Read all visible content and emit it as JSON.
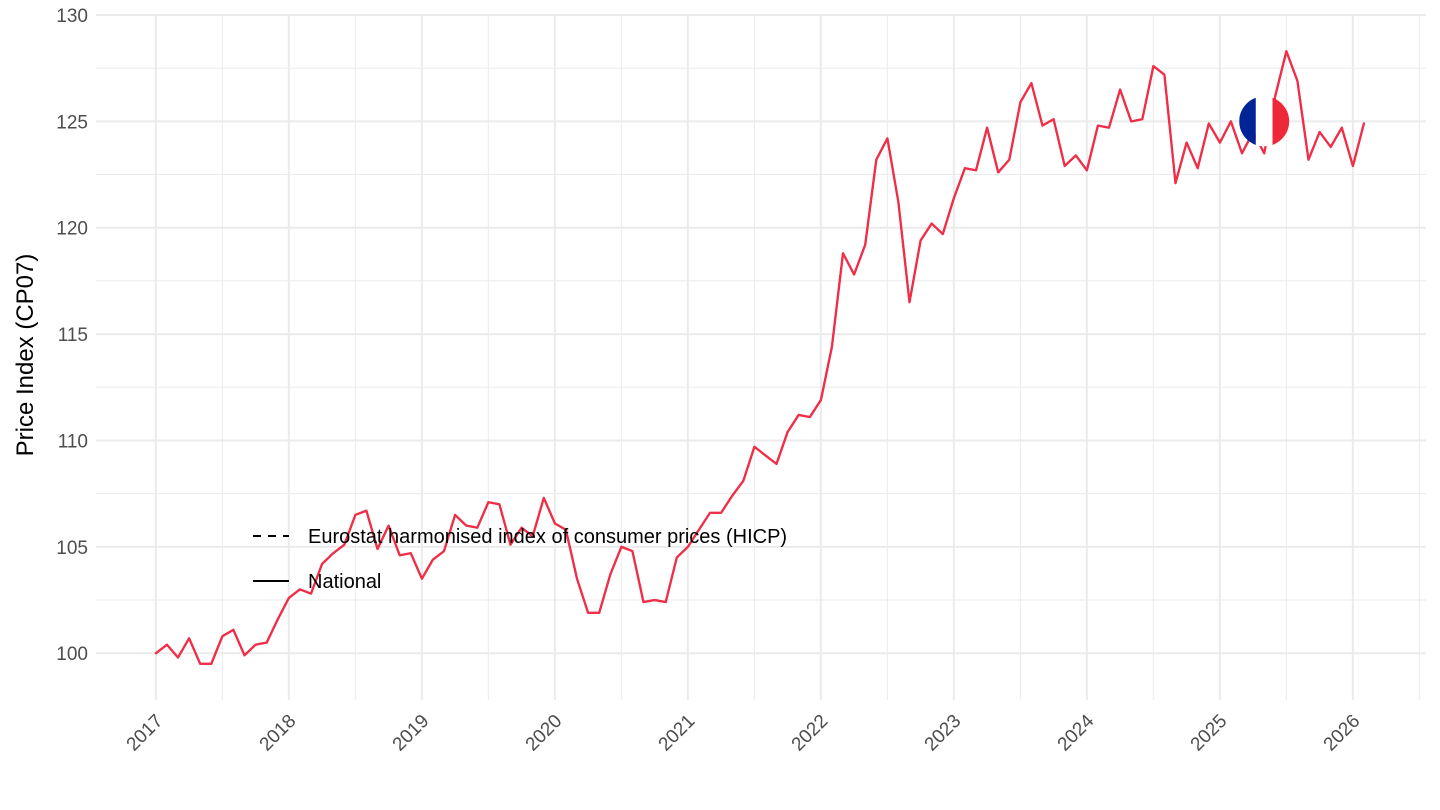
{
  "chart_data": {
    "type": "line",
    "ylabel": "Price Index (CP07)",
    "xlabel": "",
    "ylim": [
      97.8,
      130
    ],
    "xlim": [
      2016.55,
      2026.55
    ],
    "y_ticks": [
      100,
      105,
      110,
      115,
      120,
      125,
      130
    ],
    "x_ticks": [
      "2017",
      "2018",
      "2019",
      "2020",
      "2021",
      "2022",
      "2023",
      "2024",
      "2025",
      "2026"
    ],
    "grid": true,
    "legend_position": "inside-bottom-left",
    "flag": "France",
    "colors": {
      "line": "#EF2E47",
      "grid": "#EBEBEB",
      "flag_blue": "#002395",
      "flag_white": "#ffffff",
      "flag_red": "#ED2939"
    },
    "series": [
      {
        "name": "Eurostat harmonised index of consumer prices (HICP)",
        "line_style": "dashed",
        "x": [
          "2017-01",
          "2017-02",
          "2017-03",
          "2017-04",
          "2017-05",
          "2017-06",
          "2017-07",
          "2017-08",
          "2017-09",
          "2017-10",
          "2017-11",
          "2017-12",
          "2018-01",
          "2018-02",
          "2018-03",
          "2018-04",
          "2018-05",
          "2018-06",
          "2018-07",
          "2018-08",
          "2018-09",
          "2018-10",
          "2018-11",
          "2018-12",
          "2019-01",
          "2019-02",
          "2019-03",
          "2019-04",
          "2019-05",
          "2019-06",
          "2019-07",
          "2019-08",
          "2019-09",
          "2019-10",
          "2019-11",
          "2019-12",
          "2020-01",
          "2020-02",
          "2020-03",
          "2020-04",
          "2020-05",
          "2020-06",
          "2020-07",
          "2020-08",
          "2020-09",
          "2020-10",
          "2020-11",
          "2020-12",
          "2021-01",
          "2021-02",
          "2021-03",
          "2021-04",
          "2021-05",
          "2021-06",
          "2021-07",
          "2021-08",
          "2021-09",
          "2021-10",
          "2021-11",
          "2021-12",
          "2022-01",
          "2022-02",
          "2022-03",
          "2022-04",
          "2022-05",
          "2022-06",
          "2022-07",
          "2022-08",
          "2022-09",
          "2022-10",
          "2022-11",
          "2022-12",
          "2023-01",
          "2023-02",
          "2023-03",
          "2023-04",
          "2023-05",
          "2023-06",
          "2023-07",
          "2023-08",
          "2023-09",
          "2023-10",
          "2023-11",
          "2023-12",
          "2024-01",
          "2024-02",
          "2024-03",
          "2024-04",
          "2024-05",
          "2024-06",
          "2024-07",
          "2024-08",
          "2024-09",
          "2024-10",
          "2024-11",
          "2024-12",
          "2025-01",
          "2025-02",
          "2025-03",
          "2025-04",
          "2025-05",
          "2025-06",
          "2025-07",
          "2025-08",
          "2025-09",
          "2025-10",
          "2025-11",
          "2025-12",
          "2026-01",
          "2026-02"
        ],
        "y": [
          100.0,
          100.4,
          99.8,
          100.7,
          99.5,
          99.5,
          100.8,
          101.1,
          99.9,
          100.4,
          100.5,
          101.6,
          102.6,
          103.0,
          102.8,
          104.2,
          104.7,
          105.1,
          106.5,
          106.7,
          104.9,
          106.0,
          104.6,
          104.7,
          103.5,
          104.4,
          104.8,
          106.5,
          106.0,
          105.9,
          107.1,
          107.0,
          105.1,
          105.9,
          105.5,
          107.3,
          106.1,
          105.8,
          103.5,
          101.9,
          101.9,
          103.7,
          105.0,
          104.8,
          102.4,
          102.5,
          102.4,
          104.5,
          105.0,
          105.8,
          106.6,
          106.6,
          107.4,
          108.1,
          109.7,
          109.3,
          108.9,
          110.4,
          111.2,
          111.1,
          111.9,
          114.4,
          118.8,
          117.8,
          119.2,
          123.2,
          124.2,
          121.2,
          116.5,
          119.4,
          120.2,
          119.7,
          121.4,
          122.8,
          122.7,
          124.7,
          122.6,
          123.2,
          125.9,
          126.8,
          124.8,
          125.1,
          122.9,
          123.4,
          122.7,
          124.8,
          124.7,
          126.5,
          125.0,
          125.1,
          127.6,
          127.2,
          122.1,
          124.0,
          122.8,
          124.9,
          124.0,
          125.0,
          123.5,
          124.5,
          123.5,
          126.2,
          128.3,
          126.9,
          123.2,
          124.5,
          123.8,
          124.7,
          122.9,
          124.9
        ]
      },
      {
        "name": "National",
        "line_style": "solid",
        "x": [
          "2017-01",
          "2017-02",
          "2017-03",
          "2017-04",
          "2017-05",
          "2017-06",
          "2017-07",
          "2017-08",
          "2017-09",
          "2017-10",
          "2017-11",
          "2017-12",
          "2018-01",
          "2018-02",
          "2018-03",
          "2018-04",
          "2018-05",
          "2018-06",
          "2018-07",
          "2018-08",
          "2018-09",
          "2018-10",
          "2018-11",
          "2018-12",
          "2019-01",
          "2019-02",
          "2019-03",
          "2019-04",
          "2019-05",
          "2019-06",
          "2019-07",
          "2019-08",
          "2019-09",
          "2019-10",
          "2019-11",
          "2019-12",
          "2020-01",
          "2020-02",
          "2020-03",
          "2020-04",
          "2020-05",
          "2020-06",
          "2020-07",
          "2020-08",
          "2020-09",
          "2020-10",
          "2020-11",
          "2020-12",
          "2021-01",
          "2021-02",
          "2021-03",
          "2021-04",
          "2021-05",
          "2021-06",
          "2021-07",
          "2021-08",
          "2021-09",
          "2021-10",
          "2021-11",
          "2021-12",
          "2022-01",
          "2022-02",
          "2022-03",
          "2022-04",
          "2022-05",
          "2022-06",
          "2022-07",
          "2022-08",
          "2022-09",
          "2022-10",
          "2022-11",
          "2022-12",
          "2023-01",
          "2023-02",
          "2023-03",
          "2023-04",
          "2023-05",
          "2023-06",
          "2023-07",
          "2023-08",
          "2023-09",
          "2023-10",
          "2023-11",
          "2023-12",
          "2024-01",
          "2024-02",
          "2024-03",
          "2024-04",
          "2024-05",
          "2024-06",
          "2024-07",
          "2024-08",
          "2024-09",
          "2024-10",
          "2024-11",
          "2024-12",
          "2025-01",
          "2025-02",
          "2025-03",
          "2025-04",
          "2025-05",
          "2025-06",
          "2025-07",
          "2025-08",
          "2025-09",
          "2025-10",
          "2025-11",
          "2025-12",
          "2026-01",
          "2026-02"
        ],
        "y": [
          100.0,
          100.4,
          99.8,
          100.7,
          99.5,
          99.5,
          100.8,
          101.1,
          99.9,
          100.4,
          100.5,
          101.6,
          102.6,
          103.0,
          102.8,
          104.2,
          104.7,
          105.1,
          106.5,
          106.7,
          104.9,
          106.0,
          104.6,
          104.7,
          103.5,
          104.4,
          104.8,
          106.5,
          106.0,
          105.9,
          107.1,
          107.0,
          105.1,
          105.9,
          105.5,
          107.3,
          106.1,
          105.8,
          103.5,
          101.9,
          101.9,
          103.7,
          105.0,
          104.8,
          102.4,
          102.5,
          102.4,
          104.5,
          105.0,
          105.8,
          106.6,
          106.6,
          107.4,
          108.1,
          109.7,
          109.3,
          108.9,
          110.4,
          111.2,
          111.1,
          111.9,
          114.4,
          118.8,
          117.8,
          119.2,
          123.2,
          124.2,
          121.2,
          116.5,
          119.4,
          120.2,
          119.7,
          121.4,
          122.8,
          122.7,
          124.7,
          122.6,
          123.2,
          125.9,
          126.8,
          124.8,
          125.1,
          122.9,
          123.4,
          122.7,
          124.8,
          124.7,
          126.5,
          125.0,
          125.1,
          127.6,
          127.2,
          122.1,
          124.0,
          122.8,
          124.9,
          124.0,
          125.0,
          123.5,
          124.5,
          123.5,
          126.2,
          128.3,
          126.9,
          123.2,
          124.5,
          123.8,
          124.7,
          122.9,
          124.9
        ]
      }
    ],
    "flag_position": {
      "x": "2025-05",
      "y": 125
    }
  }
}
